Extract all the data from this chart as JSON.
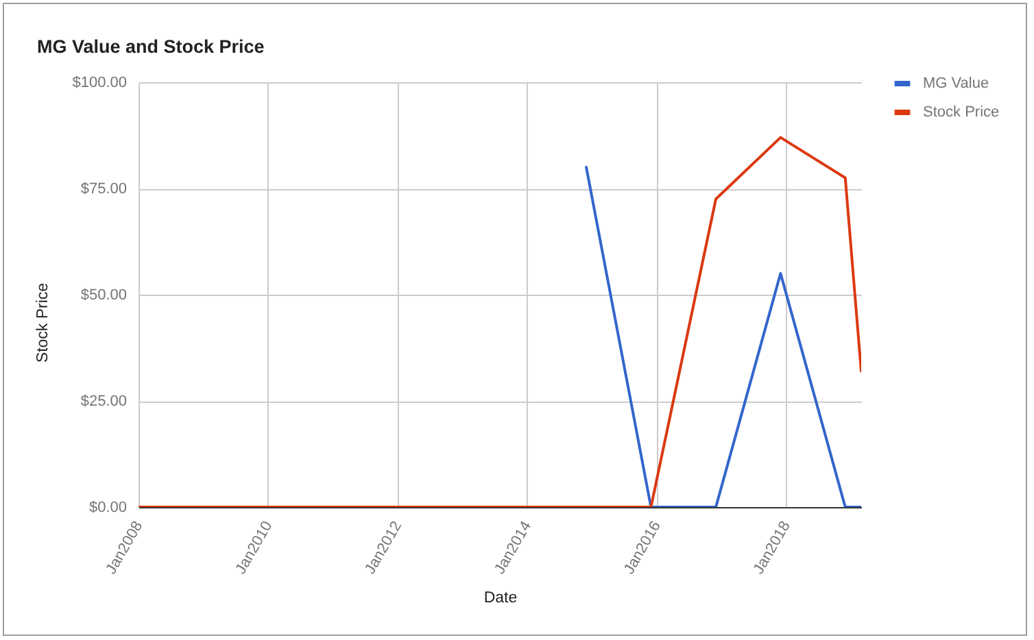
{
  "chart_data": {
    "type": "line",
    "title": "MG Value and Stock Price",
    "xlabel": "Date",
    "ylabel": "Stock Price",
    "series": [
      {
        "name": "MG Value",
        "color": "#3366cc",
        "x": [
          "2014-12",
          "2015-12",
          "2016-12",
          "2017-12",
          "2018-12",
          "2019-03"
        ],
        "values": [
          80,
          0,
          0,
          55,
          0,
          0
        ]
      },
      {
        "name": "Stock Price",
        "color": "#dc3912",
        "x": [
          "2008-01",
          "2015-12",
          "2016-12",
          "2017-12",
          "2018-12",
          "2019-03"
        ],
        "values": [
          0,
          0,
          72.5,
          87,
          77.5,
          32
        ]
      }
    ],
    "xlim": [
      "2008-01",
      "2019-03"
    ],
    "xticks": [
      {
        "value": "2008-01",
        "label": "Jan2008"
      },
      {
        "value": "2010-01",
        "label": "Jan2010"
      },
      {
        "value": "2012-01",
        "label": "Jan2012"
      },
      {
        "value": "2014-01",
        "label": "Jan2014"
      },
      {
        "value": "2016-01",
        "label": "Jan2016"
      },
      {
        "value": "2018-01",
        "label": "Jan2018"
      }
    ],
    "ylim": [
      0,
      100
    ],
    "yticks": [
      {
        "value": 0,
        "label": "$0.00"
      },
      {
        "value": 25,
        "label": "$25.00"
      },
      {
        "value": 50,
        "label": "$50.00"
      },
      {
        "value": 75,
        "label": "$75.00"
      },
      {
        "value": 100,
        "label": "$100.00"
      }
    ],
    "grid": true,
    "legend": "top right",
    "marker": "none",
    "line_style": "solid"
  }
}
